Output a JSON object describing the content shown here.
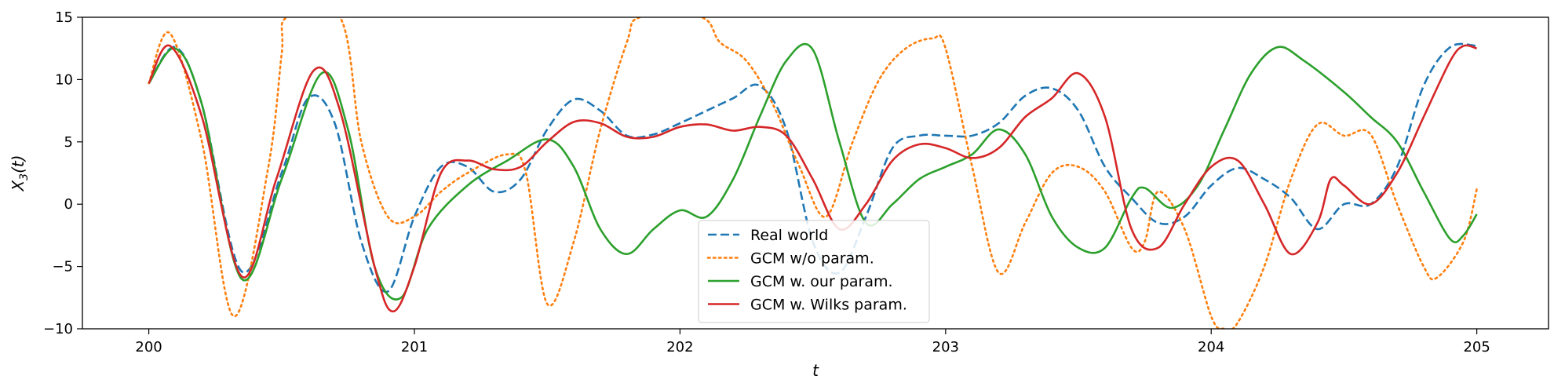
{
  "chart_data": {
    "type": "line",
    "xlabel": "t",
    "ylabel_main": "X",
    "ylabel_sub": "3",
    "ylabel_tail": "(t)",
    "xlim": [
      199.75,
      205.27
    ],
    "ylim": [
      -10,
      15
    ],
    "xticks": [
      200,
      201,
      202,
      203,
      204,
      205
    ],
    "yticks": [
      -10,
      -5,
      0,
      5,
      10,
      15
    ],
    "grid": false,
    "legend_position": "lower-center",
    "series": [
      {
        "name": "Real world",
        "color": "#1f77b4",
        "style": "dashed",
        "points": [
          [
            200.0,
            9.7
          ],
          [
            200.1,
            12.6
          ],
          [
            200.2,
            8.0
          ],
          [
            200.35,
            -5.4
          ],
          [
            200.5,
            2.5
          ],
          [
            200.6,
            8.5
          ],
          [
            200.7,
            6.5
          ],
          [
            200.8,
            -3.0
          ],
          [
            200.9,
            -7.0
          ],
          [
            201.0,
            -1.0
          ],
          [
            201.1,
            3.0
          ],
          [
            201.2,
            3.0
          ],
          [
            201.3,
            1.0
          ],
          [
            201.4,
            2.0
          ],
          [
            201.5,
            6.0
          ],
          [
            201.6,
            8.4
          ],
          [
            201.7,
            7.5
          ],
          [
            201.8,
            5.5
          ],
          [
            201.9,
            5.6
          ],
          [
            202.0,
            6.5
          ],
          [
            202.1,
            7.5
          ],
          [
            202.2,
            8.5
          ],
          [
            202.3,
            9.5
          ],
          [
            202.4,
            6.0
          ],
          [
            202.5,
            -3.0
          ],
          [
            202.6,
            -5.5
          ],
          [
            202.7,
            -1.0
          ],
          [
            202.8,
            4.5
          ],
          [
            202.9,
            5.5
          ],
          [
            203.0,
            5.5
          ],
          [
            203.1,
            5.5
          ],
          [
            203.2,
            6.5
          ],
          [
            203.3,
            8.7
          ],
          [
            203.4,
            9.3
          ],
          [
            203.5,
            7.5
          ],
          [
            203.6,
            3.0
          ],
          [
            203.7,
            0.5
          ],
          [
            203.8,
            -1.5
          ],
          [
            203.9,
            -1.0
          ],
          [
            204.0,
            1.5
          ],
          [
            204.1,
            2.9
          ],
          [
            204.2,
            2.0
          ],
          [
            204.3,
            0.5
          ],
          [
            204.4,
            -2.0
          ],
          [
            204.5,
            0.0
          ],
          [
            204.6,
            0.0
          ],
          [
            204.7,
            3.0
          ],
          [
            204.8,
            9.5
          ],
          [
            204.9,
            12.6
          ],
          [
            205.0,
            12.7
          ]
        ]
      },
      {
        "name": "GCM w/o param.",
        "color": "#ff7f0e",
        "style": "dotted",
        "points": [
          [
            200.0,
            9.7
          ],
          [
            200.08,
            13.7
          ],
          [
            200.2,
            5.0
          ],
          [
            200.32,
            -9.0
          ],
          [
            200.45,
            3.0
          ],
          [
            200.5,
            12.0
          ],
          [
            200.52,
            15.0
          ],
          [
            200.72,
            15.0
          ],
          [
            200.8,
            5.0
          ],
          [
            200.9,
            -1.0
          ],
          [
            201.0,
            -1.0
          ],
          [
            201.1,
            1.0
          ],
          [
            201.2,
            2.5
          ],
          [
            201.35,
            4.0
          ],
          [
            201.42,
            2.5
          ],
          [
            201.5,
            -8.0
          ],
          [
            201.6,
            -3.0
          ],
          [
            201.7,
            6.0
          ],
          [
            201.8,
            13.0
          ],
          [
            201.85,
            15.0
          ],
          [
            202.08,
            15.0
          ],
          [
            202.15,
            13.0
          ],
          [
            202.25,
            11.5
          ],
          [
            202.35,
            8.0
          ],
          [
            202.45,
            3.0
          ],
          [
            202.55,
            -1.0
          ],
          [
            202.65,
            5.0
          ],
          [
            202.75,
            10.0
          ],
          [
            202.85,
            12.5
          ],
          [
            202.95,
            13.3
          ],
          [
            203.0,
            12.5
          ],
          [
            203.1,
            3.0
          ],
          [
            203.2,
            -5.5
          ],
          [
            203.3,
            -1.5
          ],
          [
            203.4,
            2.5
          ],
          [
            203.5,
            3.0
          ],
          [
            203.6,
            1.0
          ],
          [
            203.7,
            -3.5
          ],
          [
            203.75,
            -3.0
          ],
          [
            203.8,
            1.0
          ],
          [
            203.9,
            -2.0
          ],
          [
            204.0,
            -9.0
          ],
          [
            204.05,
            -10.0
          ],
          [
            204.1,
            -9.5
          ],
          [
            204.2,
            -5.0
          ],
          [
            204.3,
            2.0
          ],
          [
            204.4,
            6.4
          ],
          [
            204.5,
            5.5
          ],
          [
            204.6,
            5.6
          ],
          [
            204.7,
            0.0
          ],
          [
            204.8,
            -5.0
          ],
          [
            204.85,
            -5.9
          ],
          [
            204.95,
            -3.0
          ],
          [
            205.0,
            1.2
          ]
        ]
      },
      {
        "name": "GCM w. our param.",
        "color": "#2ca02c",
        "style": "solid",
        "points": [
          [
            200.0,
            9.7
          ],
          [
            200.1,
            12.5
          ],
          [
            200.2,
            8.0
          ],
          [
            200.35,
            -6.0
          ],
          [
            200.5,
            2.0
          ],
          [
            200.65,
            10.5
          ],
          [
            200.75,
            6.0
          ],
          [
            200.85,
            -5.0
          ],
          [
            200.95,
            -7.5
          ],
          [
            201.05,
            -2.0
          ],
          [
            201.2,
            1.5
          ],
          [
            201.35,
            3.5
          ],
          [
            201.5,
            5.2
          ],
          [
            201.6,
            3.0
          ],
          [
            201.7,
            -2.0
          ],
          [
            201.8,
            -4.0
          ],
          [
            201.9,
            -2.0
          ],
          [
            202.0,
            -0.5
          ],
          [
            202.1,
            -1.0
          ],
          [
            202.2,
            2.0
          ],
          [
            202.3,
            7.0
          ],
          [
            202.4,
            11.5
          ],
          [
            202.5,
            12.4
          ],
          [
            202.6,
            5.0
          ],
          [
            202.7,
            -1.5
          ],
          [
            202.8,
            0.0
          ],
          [
            202.9,
            2.0
          ],
          [
            203.0,
            3.0
          ],
          [
            203.1,
            4.0
          ],
          [
            203.2,
            6.0
          ],
          [
            203.3,
            4.0
          ],
          [
            203.4,
            -1.0
          ],
          [
            203.5,
            -3.5
          ],
          [
            203.6,
            -3.5
          ],
          [
            203.7,
            0.5
          ],
          [
            203.75,
            1.3
          ],
          [
            203.85,
            -0.3
          ],
          [
            203.95,
            1.5
          ],
          [
            204.05,
            6.0
          ],
          [
            204.15,
            10.5
          ],
          [
            204.25,
            12.6
          ],
          [
            204.35,
            11.5
          ],
          [
            204.5,
            9.0
          ],
          [
            204.6,
            7.0
          ],
          [
            204.7,
            5.0
          ],
          [
            204.8,
            1.0
          ],
          [
            204.9,
            -2.8
          ],
          [
            204.95,
            -2.5
          ],
          [
            205.0,
            -0.8
          ]
        ]
      },
      {
        "name": "GCM w. Wilks param.",
        "color": "#d62728",
        "style": "solid",
        "points": [
          [
            200.0,
            9.7
          ],
          [
            200.08,
            12.7
          ],
          [
            200.2,
            7.0
          ],
          [
            200.35,
            -5.8
          ],
          [
            200.48,
            2.0
          ],
          [
            200.62,
            10.7
          ],
          [
            200.72,
            7.5
          ],
          [
            200.85,
            -5.0
          ],
          [
            200.92,
            -8.6
          ],
          [
            201.0,
            -5.0
          ],
          [
            201.1,
            2.5
          ],
          [
            201.2,
            3.5
          ],
          [
            201.3,
            2.8
          ],
          [
            201.4,
            3.0
          ],
          [
            201.5,
            5.0
          ],
          [
            201.6,
            6.6
          ],
          [
            201.7,
            6.5
          ],
          [
            201.8,
            5.4
          ],
          [
            201.9,
            5.4
          ],
          [
            202.0,
            6.2
          ],
          [
            202.1,
            6.4
          ],
          [
            202.2,
            5.9
          ],
          [
            202.3,
            6.2
          ],
          [
            202.4,
            5.5
          ],
          [
            202.5,
            2.0
          ],
          [
            202.6,
            -2.0
          ],
          [
            202.7,
            0.0
          ],
          [
            202.8,
            3.5
          ],
          [
            202.9,
            4.8
          ],
          [
            203.0,
            4.5
          ],
          [
            203.1,
            3.7
          ],
          [
            203.2,
            4.5
          ],
          [
            203.3,
            7.0
          ],
          [
            203.4,
            8.5
          ],
          [
            203.5,
            10.5
          ],
          [
            203.6,
            7.0
          ],
          [
            203.7,
            -2.0
          ],
          [
            203.8,
            -3.5
          ],
          [
            203.9,
            0.0
          ],
          [
            204.0,
            3.0
          ],
          [
            204.1,
            3.5
          ],
          [
            204.2,
            0.0
          ],
          [
            204.3,
            -4.0
          ],
          [
            204.4,
            -1.5
          ],
          [
            204.45,
            2.0
          ],
          [
            204.5,
            1.5
          ],
          [
            204.6,
            0.0
          ],
          [
            204.7,
            2.5
          ],
          [
            204.8,
            7.0
          ],
          [
            204.9,
            11.5
          ],
          [
            204.95,
            12.7
          ],
          [
            205.0,
            12.5
          ]
        ]
      }
    ]
  }
}
